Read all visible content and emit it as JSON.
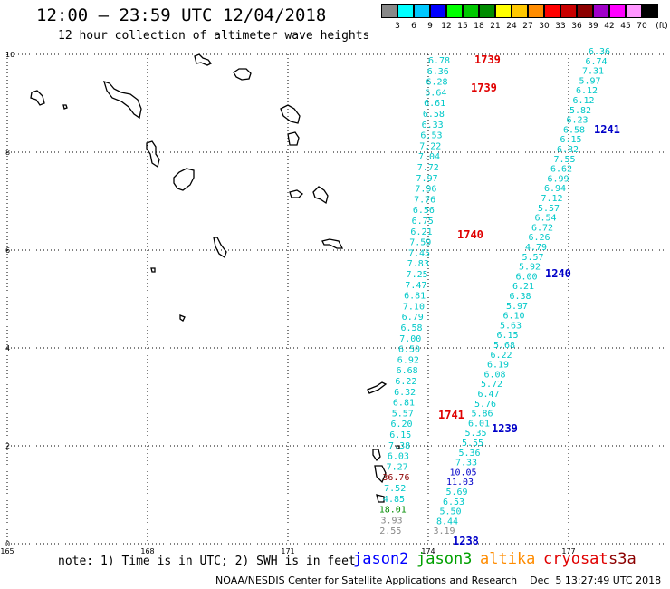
{
  "header": {
    "title": "12:00 – 23:59 UTC 12/04/2018",
    "subtitle": "12 hour collection of altimeter wave heights"
  },
  "color_scale": {
    "unit": "(ft)",
    "colors": [
      "#888888",
      "#00ffff",
      "#00c8ff",
      "#0000ff",
      "#00ff00",
      "#00c800",
      "#008c00",
      "#ffff00",
      "#ffc800",
      "#ff8c00",
      "#ff0000",
      "#c80000",
      "#8c0000",
      "#a000c8",
      "#ff00ff",
      "#ff96ff",
      "#000000"
    ],
    "labels": [
      "3",
      "6",
      "9",
      "12",
      "15",
      "18",
      "21",
      "24",
      "27",
      "30",
      "33",
      "36",
      "39",
      "42",
      "45",
      "70"
    ]
  },
  "axes": {
    "x_ticks": [
      "165",
      "168",
      "171",
      "174",
      "177"
    ],
    "y_ticks": [
      "0",
      "2",
      "4",
      "6",
      "8",
      "10"
    ]
  },
  "track_jason3": {
    "color": "#00c8c8",
    "values": [
      "6.78",
      "6.36",
      "6.28",
      "6.64",
      "6.61",
      "6.58",
      "6.33",
      "6.53",
      "7.22",
      "7.04",
      "7.72",
      "7.97",
      "7.96",
      "7.76",
      "6.56",
      "6.75",
      "6.21",
      "7.59",
      "7.45",
      "7.83",
      "7.25",
      "7.47",
      "6.81",
      "7.10",
      "6.79",
      "6.58",
      "7.00",
      "6.50",
      "6.92",
      "6.68",
      "6.22",
      "6.32",
      "6.81",
      "5.57",
      "6.20",
      "6.15",
      "7.38",
      "6.03",
      "7.27",
      "36.76",
      "7.52",
      "4.85",
      "18.01",
      "3.93",
      "2.55"
    ],
    "times": [
      "1739",
      "1739",
      "1740",
      "1741"
    ]
  },
  "track_jason2": {
    "color": "#00c8c8",
    "values": [
      "6.36",
      "6.74",
      "7.31",
      "5.97",
      "6.12",
      "6.12",
      "5.82",
      "6.23",
      "6.58",
      "6.15",
      "6.82",
      "7.55",
      "6.62",
      "6.99",
      "6.94",
      "7.12",
      "5.57",
      "6.54",
      "6.72",
      "6.26",
      "4.79",
      "5.57",
      "5.92",
      "6.00",
      "6.21",
      "6.38",
      "5.97",
      "6.10",
      "5.63",
      "6.15",
      "5.68",
      "6.22",
      "6.19",
      "6.08",
      "5.72",
      "6.47",
      "5.76",
      "5.86",
      "6.01",
      "5.35",
      "5.55",
      "5.36",
      "7.33",
      "10.05",
      "11.03",
      "5.69",
      "6.53",
      "5.50",
      "8.44",
      "3.19"
    ],
    "times": [
      "1241",
      "1240",
      "1239",
      "1238"
    ]
  },
  "footer": {
    "note": "note: 1) Time is in UTC; 2) SWH is in feet",
    "satellites": [
      {
        "name": "jason2",
        "color": "#0000ff"
      },
      {
        "name": "jason3",
        "color": "#00a000"
      },
      {
        "name": "altika",
        "color": "#ff8c00"
      },
      {
        "name": "cryosat",
        "color": "#e00000"
      },
      {
        "name": "s3a",
        "color": "#8c0000"
      }
    ],
    "credit": "NOAA/NESDIS Center for Satellite Applications and Research    Dec  5 13:27:49 UTC 2018"
  }
}
